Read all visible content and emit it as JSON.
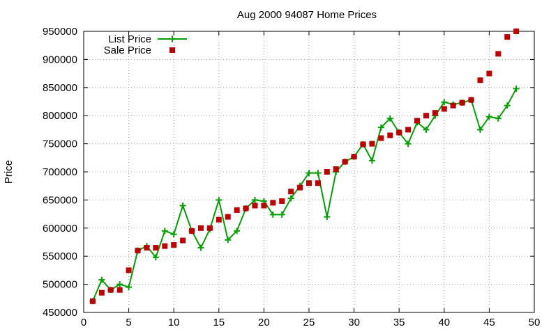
{
  "chart_data": {
    "type": "line",
    "title": "Aug 2000 94087 Home Prices",
    "xlabel": "",
    "ylabel": "Price",
    "xlim": [
      0,
      50
    ],
    "ylim": [
      450000,
      950000
    ],
    "xticks": [
      0,
      5,
      10,
      15,
      20,
      25,
      30,
      35,
      40,
      45,
      50
    ],
    "yticks": [
      450000,
      500000,
      550000,
      600000,
      650000,
      700000,
      750000,
      800000,
      850000,
      900000,
      950000
    ],
    "grid": true,
    "legend_position": "top-left",
    "series": [
      {
        "name": "List Price",
        "style": "line+cross",
        "color": "#00a000",
        "x": [
          1,
          2,
          3,
          4,
          5,
          6,
          7,
          8,
          9,
          10,
          11,
          12,
          13,
          14,
          15,
          16,
          17,
          18,
          19,
          20,
          21,
          22,
          23,
          24,
          25,
          26,
          27,
          28,
          29,
          30,
          31,
          32,
          33,
          34,
          35,
          36,
          37,
          38,
          39,
          40,
          41,
          42,
          43,
          44,
          45,
          46,
          47,
          48
        ],
        "values": [
          470000,
          508000,
          490000,
          500000,
          495000,
          560000,
          568000,
          548000,
          595000,
          589000,
          640000,
          595000,
          565000,
          598000,
          650000,
          579000,
          595000,
          635000,
          650000,
          648000,
          624000,
          624000,
          653000,
          675000,
          698000,
          698000,
          620000,
          700000,
          718000,
          727000,
          749000,
          720000,
          779000,
          795000,
          770000,
          750000,
          788000,
          775000,
          800000,
          824000,
          820000,
          823000,
          828000,
          775000,
          798000,
          795000,
          818000,
          848000
        ]
      },
      {
        "name": "Sale Price",
        "style": "square",
        "color": "#c00000",
        "x": [
          1,
          2,
          3,
          4,
          5,
          6,
          7,
          8,
          9,
          10,
          11,
          12,
          13,
          14,
          15,
          16,
          17,
          18,
          19,
          20,
          21,
          22,
          23,
          24,
          25,
          26,
          27,
          28,
          29,
          30,
          31,
          32,
          33,
          34,
          35,
          36,
          37,
          38,
          39,
          40,
          41,
          42,
          43,
          44,
          45,
          46,
          47,
          48
        ],
        "values": [
          470000,
          485000,
          490000,
          490000,
          525000,
          560000,
          565000,
          565000,
          568000,
          570000,
          578000,
          595000,
          600000,
          600000,
          615000,
          620000,
          632000,
          635000,
          640000,
          640000,
          645000,
          648000,
          665000,
          672000,
          680000,
          680000,
          700000,
          705000,
          718000,
          727000,
          749000,
          750000,
          760000,
          765000,
          770000,
          775000,
          791000,
          800000,
          805000,
          812000,
          818000,
          823000,
          828000,
          863000,
          875000,
          910000,
          940000,
          950000
        ]
      }
    ]
  }
}
